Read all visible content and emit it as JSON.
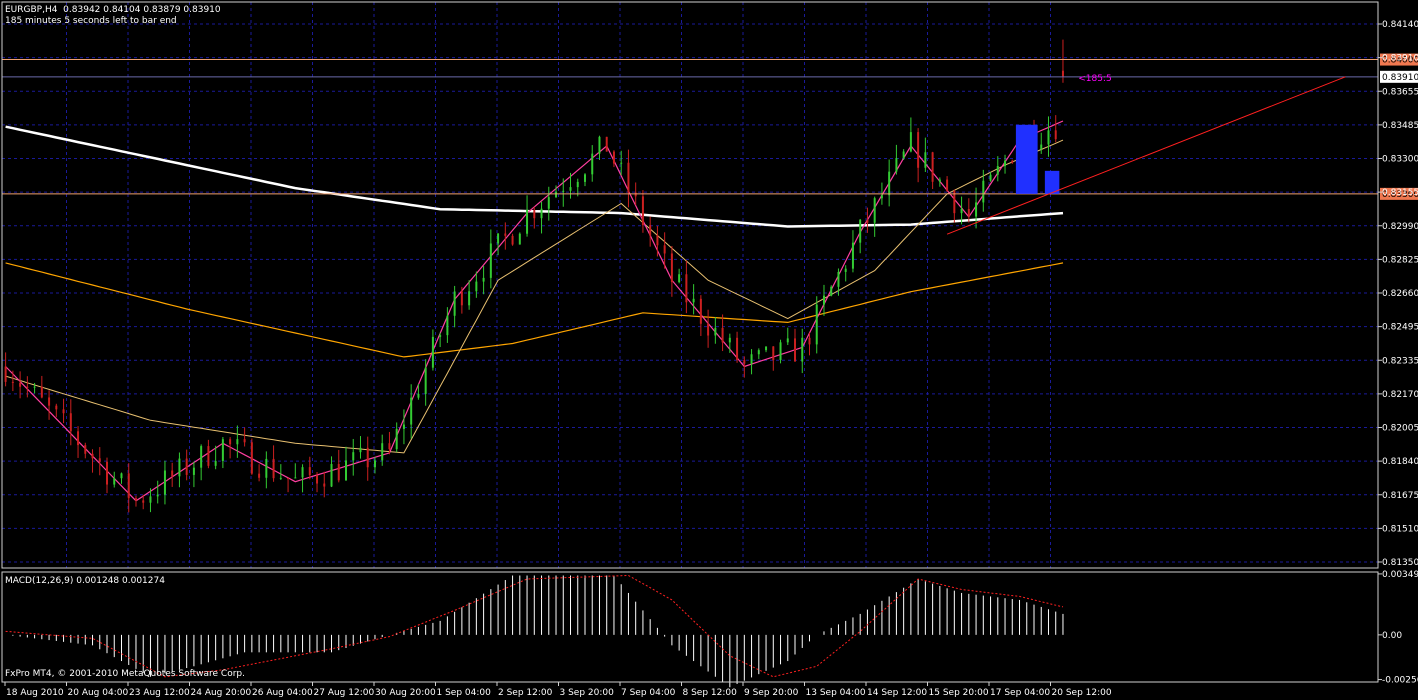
{
  "header": {
    "symbol_line": "EURGBP,H4  0.83942 0.84104 0.83879 0.83910",
    "timer": "185 minutes 5 seconds left to bar end"
  },
  "macd_label": "MACD(12,26,9) 0.001248 0.001274",
  "copyright": "FxPro MT4, © 2001-2010 MetaQuotes Software Corp.",
  "colors": {
    "background": "#000000",
    "grid": "#1a1a9a",
    "bull_candle": "#33cc33",
    "bear_candle": "#cc2020",
    "ma_slow": "#ffffff",
    "ma_mid": "#ffa500",
    "ma_fast_pink": "#ff3fa0",
    "ma_fast_yellow": "#e8c070",
    "hline": "#f0a070",
    "trendline": "#ff2020",
    "macd_hist": "#ffffff",
    "macd_signal": "#ff2020",
    "countdown": "#ff00ff",
    "price_tag_orange": "#f07850",
    "price_tag_white": "#ffffff"
  },
  "chart_data": {
    "type": "candlestick",
    "symbol": "EURGBP",
    "timeframe": "H4",
    "ohlc_last": {
      "open": 0.83942,
      "high": 0.84104,
      "low": 0.83879,
      "close": 0.8391
    },
    "price_axis_ticks": [
      "0.84140",
      "0.83910",
      "0.83655",
      "0.83485",
      "0.83300",
      "0.83155",
      "0.82990",
      "0.82825",
      "0.82660",
      "0.82495",
      "0.82335",
      "0.82170",
      "0.82005",
      "0.81840",
      "0.81675",
      "0.81510",
      "0.81350"
    ],
    "price_range": [
      0.8135,
      0.843
    ],
    "time_axis_labels": [
      "18 Aug 2010",
      "20 Aug 04:00",
      "23 Aug 12:00",
      "24 Aug 20:00",
      "26 Aug 04:00",
      "27 Aug 12:00",
      "30 Aug 20:00",
      "1 Sep 04:00",
      "2 Sep 12:00",
      "3 Sep 20:00",
      "7 Sep 04:00",
      "8 Sep 12:00",
      "9 Sep 20:00",
      "13 Sep 04:00",
      "14 Sep 12:00",
      "15 Sep 20:00",
      "17 Sep 04:00",
      "20 Sep 12:00"
    ],
    "horizontal_lines": [
      {
        "price": 0.84,
        "tag": "0.84000"
      },
      {
        "price": 0.833,
        "tag": "0.83300"
      }
    ],
    "current_price_tag": "0.83910",
    "countdown_label": "<185:5",
    "bar_count": 147,
    "moving_averages": [
      {
        "name": "ma_slow",
        "anchors": [
          [
            0,
            0.8365
          ],
          [
            15,
            0.8353
          ],
          [
            40,
            0.8333
          ],
          [
            60,
            0.8322
          ],
          [
            85,
            0.832
          ],
          [
            108,
            0.8313
          ],
          [
            125,
            0.8314
          ],
          [
            146,
            0.832
          ]
        ]
      },
      {
        "name": "ma_mid",
        "anchors": [
          [
            0,
            0.8294
          ],
          [
            25,
            0.827
          ],
          [
            55,
            0.8245
          ],
          [
            70,
            0.8252
          ],
          [
            88,
            0.8268
          ],
          [
            108,
            0.8263
          ],
          [
            125,
            0.8279
          ],
          [
            146,
            0.8294
          ]
        ]
      },
      {
        "name": "ma_fast_yellow",
        "anchors": [
          [
            0,
            0.8235
          ],
          [
            20,
            0.8212
          ],
          [
            40,
            0.82
          ],
          [
            55,
            0.8195
          ],
          [
            68,
            0.8285
          ],
          [
            85,
            0.8325
          ],
          [
            97,
            0.8285
          ],
          [
            108,
            0.8265
          ],
          [
            120,
            0.829
          ],
          [
            130,
            0.833
          ],
          [
            138,
            0.8345
          ],
          [
            146,
            0.8358
          ]
        ]
      },
      {
        "name": "ma_fast_pink",
        "anchors": [
          [
            0,
            0.824
          ],
          [
            18,
            0.817
          ],
          [
            30,
            0.82
          ],
          [
            40,
            0.818
          ],
          [
            53,
            0.8195
          ],
          [
            62,
            0.8275
          ],
          [
            72,
            0.832
          ],
          [
            83,
            0.8355
          ],
          [
            92,
            0.8285
          ],
          [
            102,
            0.824
          ],
          [
            110,
            0.825
          ],
          [
            118,
            0.831
          ],
          [
            125,
            0.8355
          ],
          [
            133,
            0.8318
          ],
          [
            140,
            0.8358
          ],
          [
            146,
            0.8368
          ]
        ]
      }
    ],
    "trendline": {
      "from_bar": 130,
      "from_price": 0.8309,
      "to_bar": 185,
      "to_price": 0.8391
    },
    "highlight_rects": [
      {
        "bar_from": 140,
        "bar_to": 142,
        "price_from": 0.833,
        "price_to": 0.8366,
        "color": "#2030ff"
      },
      {
        "bar_from": 144,
        "bar_to": 145,
        "price_from": 0.833,
        "price_to": 0.8342,
        "color": "#2030ff"
      }
    ],
    "macd": {
      "params": "12,26,9",
      "main": 0.001248,
      "signal": 0.001274,
      "ticks": [
        "0.00349",
        "0.00",
        "-0.00256"
      ],
      "range": [
        -0.0027,
        0.0036
      ],
      "hist_anchors": [
        [
          0,
          0.0
        ],
        [
          12,
          -0.0006
        ],
        [
          20,
          -0.0024
        ],
        [
          26,
          -0.0018
        ],
        [
          33,
          -0.001
        ],
        [
          45,
          -0.001
        ],
        [
          53,
          0.0
        ],
        [
          60,
          0.0008
        ],
        [
          70,
          0.0034
        ],
        [
          84,
          0.0034
        ],
        [
          92,
          -0.0006
        ],
        [
          100,
          -0.003
        ],
        [
          108,
          -0.0015
        ],
        [
          112,
          0.0
        ],
        [
          118,
          0.0012
        ],
        [
          126,
          0.0032
        ],
        [
          132,
          0.0024
        ],
        [
          140,
          0.002
        ],
        [
          146,
          0.0012
        ]
      ],
      "signal_anchors": [
        [
          0,
          0.0002
        ],
        [
          12,
          -0.0002
        ],
        [
          22,
          -0.0024
        ],
        [
          30,
          -0.002
        ],
        [
          45,
          -0.0008
        ],
        [
          53,
          -0.0001
        ],
        [
          62,
          0.0014
        ],
        [
          72,
          0.0032
        ],
        [
          86,
          0.0034
        ],
        [
          92,
          0.002
        ],
        [
          100,
          -0.0012
        ],
        [
          106,
          -0.0024
        ],
        [
          112,
          -0.0018
        ],
        [
          118,
          0.0002
        ],
        [
          126,
          0.0032
        ],
        [
          132,
          0.0026
        ],
        [
          140,
          0.0022
        ],
        [
          146,
          0.0016
        ]
      ]
    }
  }
}
